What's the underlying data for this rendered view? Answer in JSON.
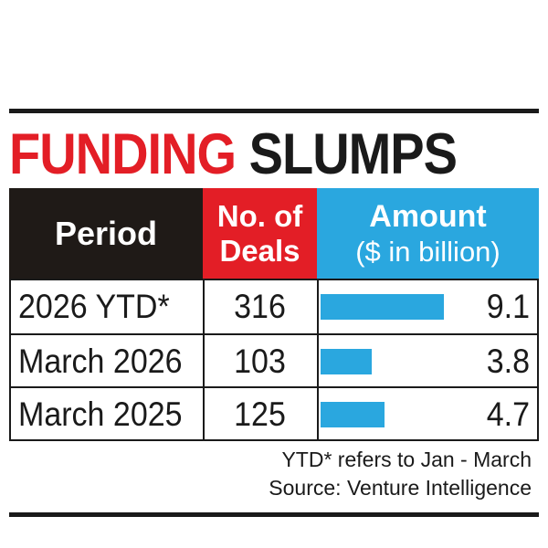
{
  "title": {
    "word1": "FUNDING",
    "word2": "SLUMPS"
  },
  "headers": {
    "period": "Period",
    "deals_line1": "No. of",
    "deals_line2": "Deals",
    "amount_line1": "Amount",
    "amount_line2": "($ in billion)"
  },
  "rows": [
    {
      "period": "2026 YTD*",
      "deals": "316",
      "amount": "9.1"
    },
    {
      "period": "March 2026",
      "deals": "103",
      "amount": "3.8"
    },
    {
      "period": "March 2025",
      "deals": "125",
      "amount": "4.7"
    }
  ],
  "notes": {
    "footnote": "YTD* refers to Jan - March",
    "source": "Source: Venture Intelligence"
  },
  "colors": {
    "red": "#e31e26",
    "blue": "#2aa7df",
    "dark": "#1f1a17"
  },
  "chart_data": {
    "type": "table",
    "title": "FUNDING SLUMPS",
    "columns": [
      "Period",
      "No. of Deals",
      "Amount ($ in billion)"
    ],
    "categories": [
      "2026 YTD*",
      "March 2026",
      "March 2025"
    ],
    "series": [
      {
        "name": "No. of Deals",
        "values": [
          316,
          103,
          125
        ]
      },
      {
        "name": "Amount ($ in billion)",
        "values": [
          9.1,
          3.8,
          4.7
        ]
      }
    ]
  }
}
